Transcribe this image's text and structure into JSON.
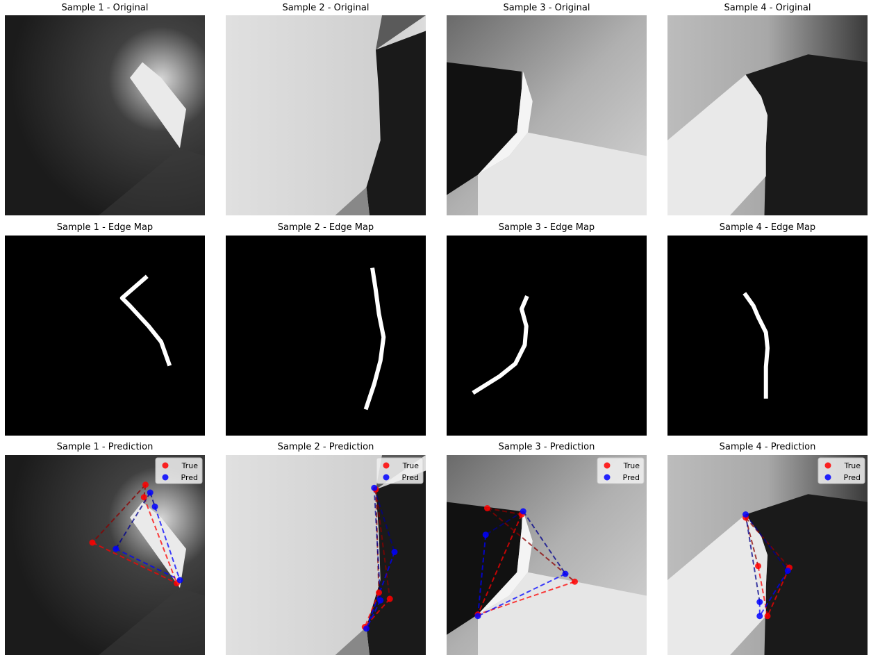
{
  "chart_data": [
    {
      "type": "image",
      "title": "Sample 1 - Original",
      "kind": "original",
      "sample": 0
    },
    {
      "type": "image",
      "title": "Sample 2 - Original",
      "kind": "original",
      "sample": 1
    },
    {
      "type": "image",
      "title": "Sample 3 - Original",
      "kind": "original",
      "sample": 2
    },
    {
      "type": "image",
      "title": "Sample 4 - Original",
      "kind": "original",
      "sample": 3
    },
    {
      "type": "image",
      "title": "Sample 1 - Edge Map",
      "kind": "edge",
      "sample": 0
    },
    {
      "type": "image",
      "title": "Sample 2 - Edge Map",
      "kind": "edge",
      "sample": 1
    },
    {
      "type": "image",
      "title": "Sample 3 - Edge Map",
      "kind": "edge",
      "sample": 2
    },
    {
      "type": "image",
      "title": "Sample 4 - Edge Map",
      "kind": "edge",
      "sample": 3
    },
    {
      "type": "scatter",
      "title": "Sample 1 - Prediction",
      "kind": "prediction",
      "sample": 0,
      "xlim": [
        0,
        128
      ],
      "ylim": [
        128,
        0
      ],
      "legend": {
        "position": "top-right",
        "entries": [
          "True",
          "Pred"
        ]
      },
      "series": [
        {
          "name": "True",
          "color": "#ff0000",
          "points": [
            [
              90,
              19
            ],
            [
              89,
              27
            ],
            [
              56,
              56
            ],
            [
              110,
              82
            ]
          ]
        },
        {
          "name": "Pred",
          "color": "#0000ff",
          "points": [
            [
              93,
              24
            ],
            [
              96,
              33
            ],
            [
              71,
              60
            ],
            [
              112,
              80
            ]
          ]
        }
      ]
    },
    {
      "type": "scatter",
      "title": "Sample 2 - Prediction",
      "kind": "prediction",
      "sample": 1,
      "xlim": [
        0,
        128
      ],
      "ylim": [
        128,
        0
      ],
      "legend": {
        "position": "top-right",
        "entries": [
          "True",
          "Pred"
        ]
      },
      "series": [
        {
          "name": "True",
          "color": "#ff0000",
          "points": [
            [
              96,
              22
            ],
            [
              98,
              88
            ],
            [
              105,
              92
            ],
            [
              89,
              110
            ]
          ]
        },
        {
          "name": "Pred",
          "color": "#0000ff",
          "points": [
            [
              95,
              21
            ],
            [
              99,
              93
            ],
            [
              108,
              62
            ],
            [
              90,
              111
            ]
          ]
        }
      ]
    },
    {
      "type": "scatter",
      "title": "Sample 3 - Prediction",
      "kind": "prediction",
      "sample": 2,
      "xlim": [
        0,
        128
      ],
      "ylim": [
        128,
        0
      ],
      "legend": {
        "position": "top-right",
        "entries": [
          "True",
          "Pred"
        ]
      },
      "series": [
        {
          "name": "True",
          "color": "#ff0000",
          "points": [
            [
              26,
              34
            ],
            [
              48,
              38
            ],
            [
              82,
              81
            ],
            [
              20,
              102
            ]
          ]
        },
        {
          "name": "Pred",
          "color": "#0000ff",
          "points": [
            [
              49,
              36
            ],
            [
              25,
              51
            ],
            [
              76,
              76
            ],
            [
              20,
              103
            ]
          ]
        }
      ]
    },
    {
      "type": "scatter",
      "title": "Sample 4 - Prediction",
      "kind": "prediction",
      "sample": 3,
      "xlim": [
        0,
        128
      ],
      "ylim": [
        128,
        0
      ],
      "legend": {
        "position": "top-right",
        "entries": [
          "True",
          "Pred"
        ]
      },
      "series": [
        {
          "name": "True",
          "color": "#ff0000",
          "points": [
            [
              50,
              40
            ],
            [
              78,
              72
            ],
            [
              58,
              71
            ],
            [
              64,
              103
            ]
          ]
        },
        {
          "name": "Pred",
          "color": "#0000ff",
          "points": [
            [
              50,
              38
            ],
            [
              77,
              74
            ],
            [
              59,
              94
            ],
            [
              59,
              103
            ]
          ]
        }
      ]
    }
  ],
  "edges": [
    [
      [
        90,
        27
      ],
      [
        75,
        40
      ],
      [
        80,
        45
      ],
      [
        92,
        58
      ],
      [
        100,
        68
      ],
      [
        105,
        82
      ]
    ],
    [
      [
        94,
        22
      ],
      [
        96,
        35
      ],
      [
        98,
        50
      ],
      [
        101,
        65
      ],
      [
        99,
        80
      ],
      [
        95,
        95
      ],
      [
        90,
        110
      ]
    ],
    [
      [
        51,
        40
      ],
      [
        48,
        47
      ],
      [
        51,
        58
      ],
      [
        50,
        70
      ],
      [
        44,
        82
      ],
      [
        34,
        90
      ],
      [
        18,
        100
      ]
    ],
    [
      [
        50,
        38
      ],
      [
        55,
        45
      ],
      [
        58,
        52
      ],
      [
        63,
        62
      ],
      [
        64,
        72
      ],
      [
        63,
        84
      ],
      [
        63,
        103
      ]
    ]
  ],
  "colors": {
    "true": "#ff0000",
    "pred": "#0000ff",
    "dark_true": "#8b0000",
    "dark_pred": "#00008b"
  }
}
